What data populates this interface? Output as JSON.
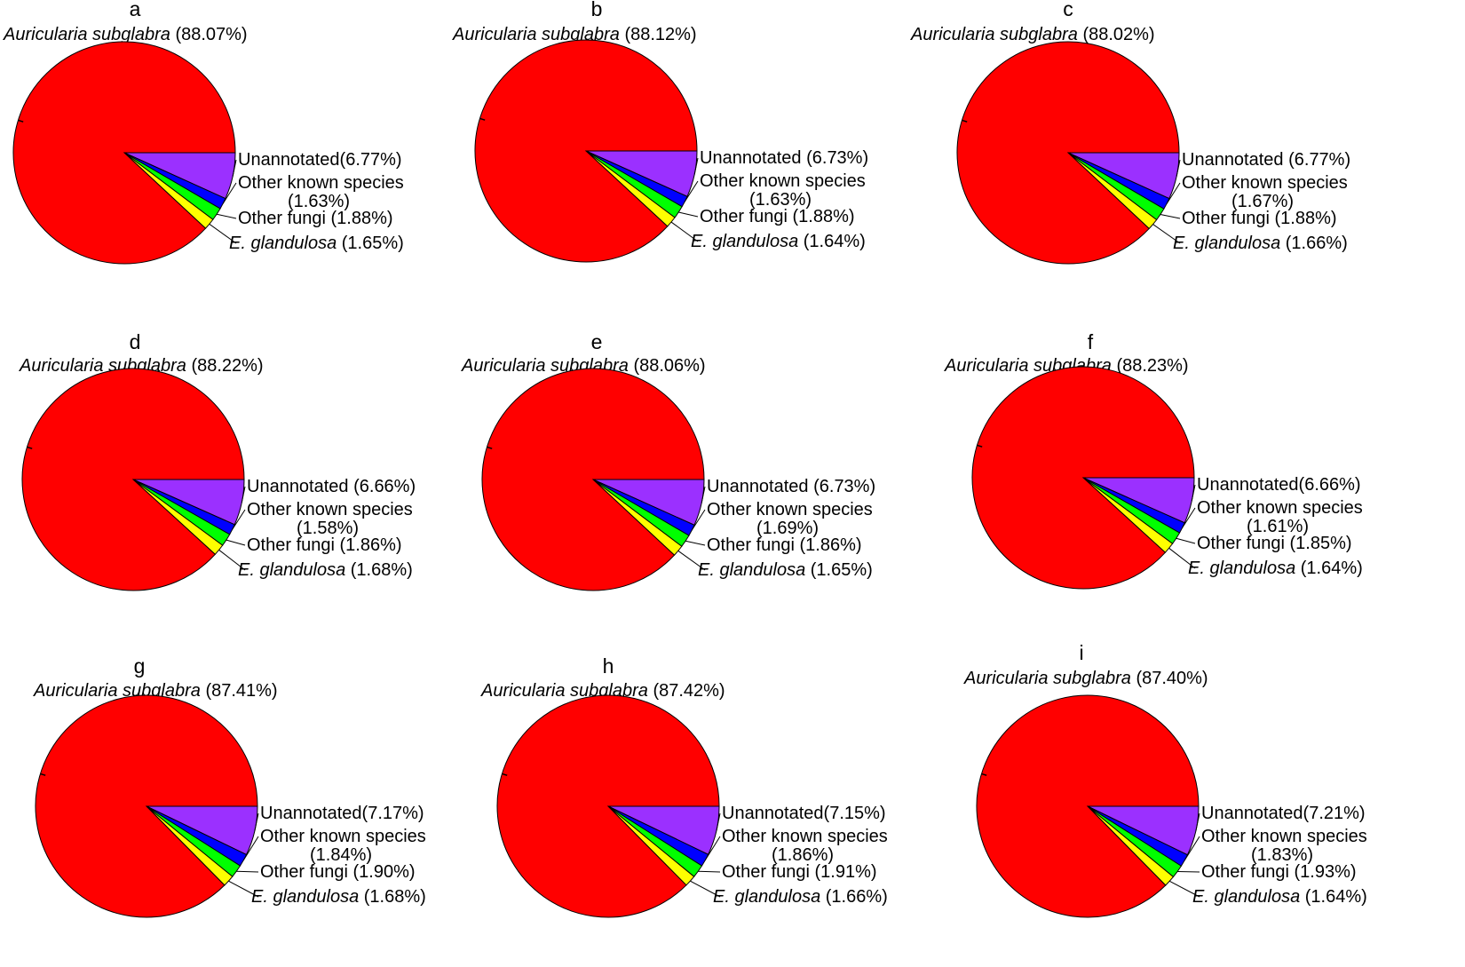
{
  "figure": {
    "description_label": "Nine pie charts of read annotation proportions"
  },
  "colors": {
    "Auricularia subglabra": "#ff0000",
    "Unannotated": "#9b30ff",
    "Other known species": "#0000ff",
    "Other fungi": "#00ff00",
    "E. glandulosa": "#ffff00"
  },
  "chart_data": [
    {
      "type": "pie",
      "panel": "a",
      "title_species": "Auricularia subglabra",
      "title_value": "(88.07%)",
      "slices": [
        {
          "name": "Auricularia subglabra",
          "value": 88.07
        },
        {
          "name": "Unannotated",
          "value": 6.77
        },
        {
          "name": "Other known species",
          "value": 1.63
        },
        {
          "name": "Other fungi",
          "value": 1.88
        },
        {
          "name": "E. glandulosa",
          "value": 1.65
        }
      ],
      "labels": {
        "unannotated": "Unannotated(6.77%)",
        "other_known_1": "Other known species",
        "other_known_2": "(1.63%)",
        "other_fungi": "Other fungi (1.88%)",
        "eg_name": "E. glandulosa",
        "eg_value": "(1.65%)"
      }
    },
    {
      "type": "pie",
      "panel": "b",
      "title_species": "Auricularia subglabra",
      "title_value": "(88.12%)",
      "slices": [
        {
          "name": "Auricularia subglabra",
          "value": 88.12
        },
        {
          "name": "Unannotated",
          "value": 6.73
        },
        {
          "name": "Other known species",
          "value": 1.63
        },
        {
          "name": "Other fungi",
          "value": 1.88
        },
        {
          "name": "E. glandulosa",
          "value": 1.64
        }
      ],
      "labels": {
        "unannotated": "Unannotated (6.73%)",
        "other_known_1": "Other known species",
        "other_known_2": "(1.63%)",
        "other_fungi": "Other fungi (1.88%)",
        "eg_name": "E. glandulosa",
        "eg_value": "(1.64%)"
      }
    },
    {
      "type": "pie",
      "panel": "c",
      "title_species": "Auricularia subglabra",
      "title_value": "(88.02%)",
      "slices": [
        {
          "name": "Auricularia subglabra",
          "value": 88.02
        },
        {
          "name": "Unannotated",
          "value": 6.77
        },
        {
          "name": "Other known species",
          "value": 1.67
        },
        {
          "name": "Other fungi",
          "value": 1.88
        },
        {
          "name": "E. glandulosa",
          "value": 1.66
        }
      ],
      "labels": {
        "unannotated": "Unannotated (6.77%)",
        "other_known_1": "Other known species",
        "other_known_2": "(1.67%)",
        "other_fungi": "Other fungi (1.88%)",
        "eg_name": "E. glandulosa",
        "eg_value": "(1.66%)"
      }
    },
    {
      "type": "pie",
      "panel": "d",
      "title_species": "Auricularia subglabra",
      "title_value": "(88.22%)",
      "slices": [
        {
          "name": "Auricularia subglabra",
          "value": 88.22
        },
        {
          "name": "Unannotated",
          "value": 6.66
        },
        {
          "name": "Other known species",
          "value": 1.58
        },
        {
          "name": "Other fungi",
          "value": 1.86
        },
        {
          "name": "E. glandulosa",
          "value": 1.68
        }
      ],
      "labels": {
        "unannotated": "Unannotated (6.66%)",
        "other_known_1": "Other known species",
        "other_known_2": "(1.58%)",
        "other_fungi": "Other fungi (1.86%)",
        "eg_name": "E. glandulosa",
        "eg_value": "(1.68%)"
      }
    },
    {
      "type": "pie",
      "panel": "e",
      "title_species": "Auricularia subglabra",
      "title_value": "(88.06%)",
      "slices": [
        {
          "name": "Auricularia subglabra",
          "value": 88.06
        },
        {
          "name": "Unannotated",
          "value": 6.73
        },
        {
          "name": "Other known species",
          "value": 1.69
        },
        {
          "name": "Other fungi",
          "value": 1.86
        },
        {
          "name": "E. glandulosa",
          "value": 1.65
        }
      ],
      "labels": {
        "unannotated": "Unannotated (6.73%)",
        "other_known_1": "Other known species",
        "other_known_2": "(1.69%)",
        "other_fungi": "Other fungi (1.86%)",
        "eg_name": "E. glandulosa",
        "eg_value": "(1.65%)"
      }
    },
    {
      "type": "pie",
      "panel": "f",
      "title_species": "Auricularia subglabra",
      "title_value": "(88.23%)",
      "slices": [
        {
          "name": "Auricularia subglabra",
          "value": 88.23
        },
        {
          "name": "Unannotated",
          "value": 6.66
        },
        {
          "name": "Other known species",
          "value": 1.61
        },
        {
          "name": "Other fungi",
          "value": 1.85
        },
        {
          "name": "E. glandulosa",
          "value": 1.64
        }
      ],
      "labels": {
        "unannotated": "Unannotated(6.66%)",
        "other_known_1": "Other known species",
        "other_known_2": "(1.61%)",
        "other_fungi": "Other fungi (1.85%)",
        "eg_name": "E. glandulosa",
        "eg_value": "(1.64%)"
      }
    },
    {
      "type": "pie",
      "panel": "g",
      "title_species": "Auricularia subglabra",
      "title_value": "(87.41%)",
      "slices": [
        {
          "name": "Auricularia subglabra",
          "value": 87.41
        },
        {
          "name": "Unannotated",
          "value": 7.17
        },
        {
          "name": "Other known species",
          "value": 1.84
        },
        {
          "name": "Other fungi",
          "value": 1.9
        },
        {
          "name": "E. glandulosa",
          "value": 1.68
        }
      ],
      "labels": {
        "unannotated": "Unannotated(7.17%)",
        "other_known_1": "Other known species",
        "other_known_2": "(1.84%)",
        "other_fungi": "Other fungi (1.90%)",
        "eg_name": "E. glandulosa",
        "eg_value": "(1.68%)"
      }
    },
    {
      "type": "pie",
      "panel": "h",
      "title_species": "Auricularia subglabra",
      "title_value": "(87.42%)",
      "slices": [
        {
          "name": "Auricularia subglabra",
          "value": 87.42
        },
        {
          "name": "Unannotated",
          "value": 7.15
        },
        {
          "name": "Other known species",
          "value": 1.86
        },
        {
          "name": "Other fungi",
          "value": 1.91
        },
        {
          "name": "E. glandulosa",
          "value": 1.66
        }
      ],
      "labels": {
        "unannotated": "Unannotated(7.15%)",
        "other_known_1": "Other known species",
        "other_known_2": "(1.86%)",
        "other_fungi": "Other fungi (1.91%)",
        "eg_name": "E. glandulosa",
        "eg_value": "(1.66%)"
      }
    },
    {
      "type": "pie",
      "panel": "i",
      "title_species": "Auricularia subglabra",
      "title_value": "(87.40%)",
      "slices": [
        {
          "name": "Auricularia subglabra",
          "value": 87.4
        },
        {
          "name": "Unannotated",
          "value": 7.21
        },
        {
          "name": "Other known species",
          "value": 1.83
        },
        {
          "name": "Other fungi",
          "value": 1.93
        },
        {
          "name": "E. glandulosa",
          "value": 1.64
        }
      ],
      "labels": {
        "unannotated": "Unannotated(7.21%)",
        "other_known_1": "Other known species",
        "other_known_2": "(1.83%)",
        "other_fungi": "Other fungi (1.93%)",
        "eg_name": "E. glandulosa",
        "eg_value": "(1.64%)"
      }
    }
  ]
}
